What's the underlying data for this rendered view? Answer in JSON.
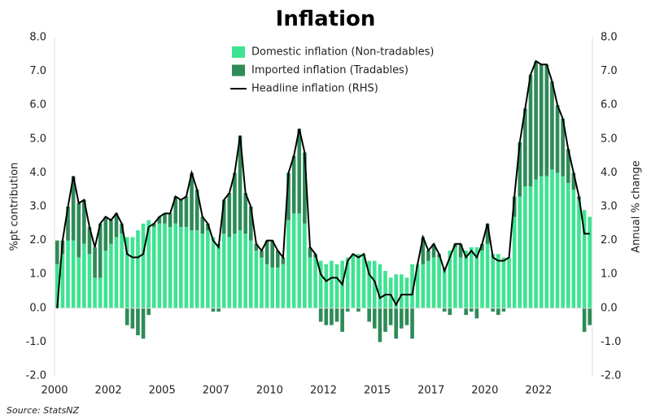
{
  "chart_data": {
    "type": "bar",
    "title": "Inflation",
    "source": "Source: StatsNZ",
    "y_label": "%pt contribution",
    "y2_label": "Annual % change",
    "categories": [
      "2000",
      null,
      null,
      null,
      null,
      null,
      null,
      null,
      null,
      null,
      "2002",
      null,
      null,
      null,
      null,
      null,
      null,
      null,
      null,
      null,
      "2005",
      null,
      null,
      null,
      null,
      null,
      null,
      null,
      null,
      null,
      "2007",
      null,
      null,
      null,
      null,
      null,
      null,
      null,
      null,
      null,
      "2010",
      null,
      null,
      null,
      null,
      null,
      null,
      null,
      null,
      null,
      "2012",
      null,
      null,
      null,
      null,
      null,
      null,
      null,
      null,
      null,
      "2015",
      null,
      null,
      null,
      null,
      null,
      null,
      null,
      null,
      null,
      "2017",
      null,
      null,
      null,
      null,
      null,
      null,
      null,
      null,
      null,
      "2020",
      null,
      null,
      null,
      null,
      null,
      null,
      null,
      null,
      null,
      "2022",
      null,
      null,
      null,
      null,
      null,
      null,
      null,
      null,
      null
    ],
    "series": [
      {
        "name": "Domestic inflation (Non-tradables)",
        "color": "#3ee391",
        "values": [
          1.3,
          1.6,
          2.0,
          2.0,
          1.5,
          1.9,
          1.6,
          0.9,
          0.9,
          1.7,
          1.9,
          2.1,
          2.2,
          2.1,
          2.1,
          2.3,
          2.5,
          2.6,
          2.4,
          2.5,
          2.5,
          2.4,
          2.5,
          2.4,
          2.4,
          2.3,
          2.3,
          2.2,
          2.3,
          2.1,
          1.9,
          2.2,
          2.1,
          2.2,
          2.3,
          2.2,
          2.0,
          1.7,
          1.5,
          1.3,
          1.2,
          1.2,
          1.3,
          2.6,
          2.8,
          2.8,
          2.5,
          1.5,
          1.5,
          1.4,
          1.3,
          1.4,
          1.3,
          1.4,
          1.5,
          1.6,
          1.6,
          1.6,
          1.4,
          1.4,
          1.3,
          1.1,
          0.9,
          1.0,
          1.0,
          0.9,
          1.3,
          1.3,
          1.3,
          1.4,
          1.5,
          1.5,
          1.2,
          1.7,
          1.8,
          1.5,
          1.7,
          1.8,
          1.8,
          1.7,
          1.9,
          1.6,
          1.6,
          1.5,
          1.5,
          2.7,
          3.3,
          3.6,
          3.6,
          3.8,
          3.9,
          3.9,
          4.1,
          4.0,
          3.9,
          3.7,
          3.5,
          3.2,
          2.9,
          2.7
        ]
      },
      {
        "name": "Imported inflation (Tradables)",
        "color": "#2e8b57",
        "values": [
          0.7,
          0.4,
          1.0,
          1.9,
          1.6,
          1.3,
          0.8,
          0.9,
          1.6,
          1.0,
          0.7,
          0.7,
          0.3,
          -0.5,
          -0.6,
          -0.8,
          -0.9,
          -0.2,
          0.1,
          0.2,
          0.3,
          0.4,
          0.8,
          0.8,
          0.9,
          1.7,
          1.2,
          0.5,
          0.2,
          -0.1,
          -0.1,
          1.0,
          1.3,
          1.8,
          2.8,
          1.2,
          1.0,
          0.2,
          0.2,
          0.7,
          0.8,
          0.5,
          0.2,
          1.4,
          1.7,
          2.5,
          2.1,
          0.3,
          0.1,
          -0.4,
          -0.5,
          -0.5,
          -0.4,
          -0.7,
          -0.1,
          0.0,
          -0.1,
          0.0,
          -0.4,
          -0.6,
          -1.0,
          -0.7,
          -0.5,
          -0.9,
          -0.6,
          -0.5,
          -0.9,
          0.0,
          0.8,
          0.3,
          0.4,
          0.1,
          -0.1,
          -0.2,
          0.1,
          0.4,
          -0.2,
          -0.1,
          -0.3,
          0.2,
          0.6,
          -0.1,
          -0.2,
          -0.1,
          0.0,
          0.6,
          1.6,
          2.3,
          3.3,
          3.5,
          3.3,
          3.3,
          2.6,
          2.0,
          1.7,
          1.0,
          0.5,
          0.1,
          -0.7,
          -0.5
        ]
      },
      {
        "name": "Headline inflation (RHS)",
        "color": "#000000",
        "axis": "y2",
        "values": [
          0.0,
          2.0,
          3.0,
          3.9,
          3.1,
          3.2,
          2.4,
          1.8,
          2.5,
          2.7,
          2.6,
          2.8,
          2.5,
          1.6,
          1.5,
          1.5,
          1.6,
          2.4,
          2.5,
          2.7,
          2.8,
          2.8,
          3.3,
          3.2,
          3.3,
          4.0,
          3.5,
          2.7,
          2.5,
          2.0,
          1.8,
          3.2,
          3.4,
          4.0,
          5.1,
          3.4,
          3.0,
          1.9,
          1.7,
          2.0,
          2.0,
          1.7,
          1.5,
          4.0,
          4.5,
          5.3,
          4.6,
          1.8,
          1.6,
          1.0,
          0.8,
          0.9,
          0.9,
          0.7,
          1.4,
          1.6,
          1.5,
          1.6,
          1.0,
          0.8,
          0.3,
          0.4,
          0.4,
          0.1,
          0.4,
          0.4,
          0.4,
          1.3,
          2.1,
          1.7,
          1.9,
          1.6,
          1.1,
          1.5,
          1.9,
          1.9,
          1.5,
          1.7,
          1.5,
          1.9,
          2.5,
          1.5,
          1.4,
          1.4,
          1.5,
          3.3,
          4.9,
          5.9,
          6.9,
          7.3,
          7.2,
          7.2,
          6.7,
          6.0,
          5.6,
          4.7,
          4.0,
          3.3,
          2.2,
          2.2
        ]
      }
    ],
    "ylim": [
      -2,
      8
    ],
    "yticks": [
      {
        "value": -2,
        "label": "-2.0"
      },
      {
        "value": -1,
        "label": "-1.0"
      },
      {
        "value": 0,
        "label": "0.0"
      },
      {
        "value": 1,
        "label": "1.0"
      },
      {
        "value": 2,
        "label": "2.0"
      },
      {
        "value": 3,
        "label": "3.0"
      },
      {
        "value": 4,
        "label": "4.0"
      },
      {
        "value": 5,
        "label": "5.0"
      },
      {
        "value": 6,
        "label": "6.0"
      },
      {
        "value": 7,
        "label": "7.0"
      },
      {
        "value": 8,
        "label": "8.0"
      }
    ],
    "y2lim": [
      -2,
      8
    ],
    "y2ticks": [
      {
        "value": -2,
        "label": "-2.0"
      },
      {
        "value": -1,
        "label": "-1.0"
      },
      {
        "value": 0,
        "label": "0.0"
      },
      {
        "value": 1,
        "label": "1.0"
      },
      {
        "value": 2,
        "label": "2.0"
      },
      {
        "value": 3,
        "label": "3.0"
      },
      {
        "value": 4,
        "label": "4.0"
      },
      {
        "value": 5,
        "label": "5.0"
      },
      {
        "value": 6,
        "label": "6.0"
      },
      {
        "value": 7,
        "label": "7.0"
      },
      {
        "value": 8,
        "label": "8.0"
      }
    ],
    "grid": false,
    "legend": "top"
  }
}
